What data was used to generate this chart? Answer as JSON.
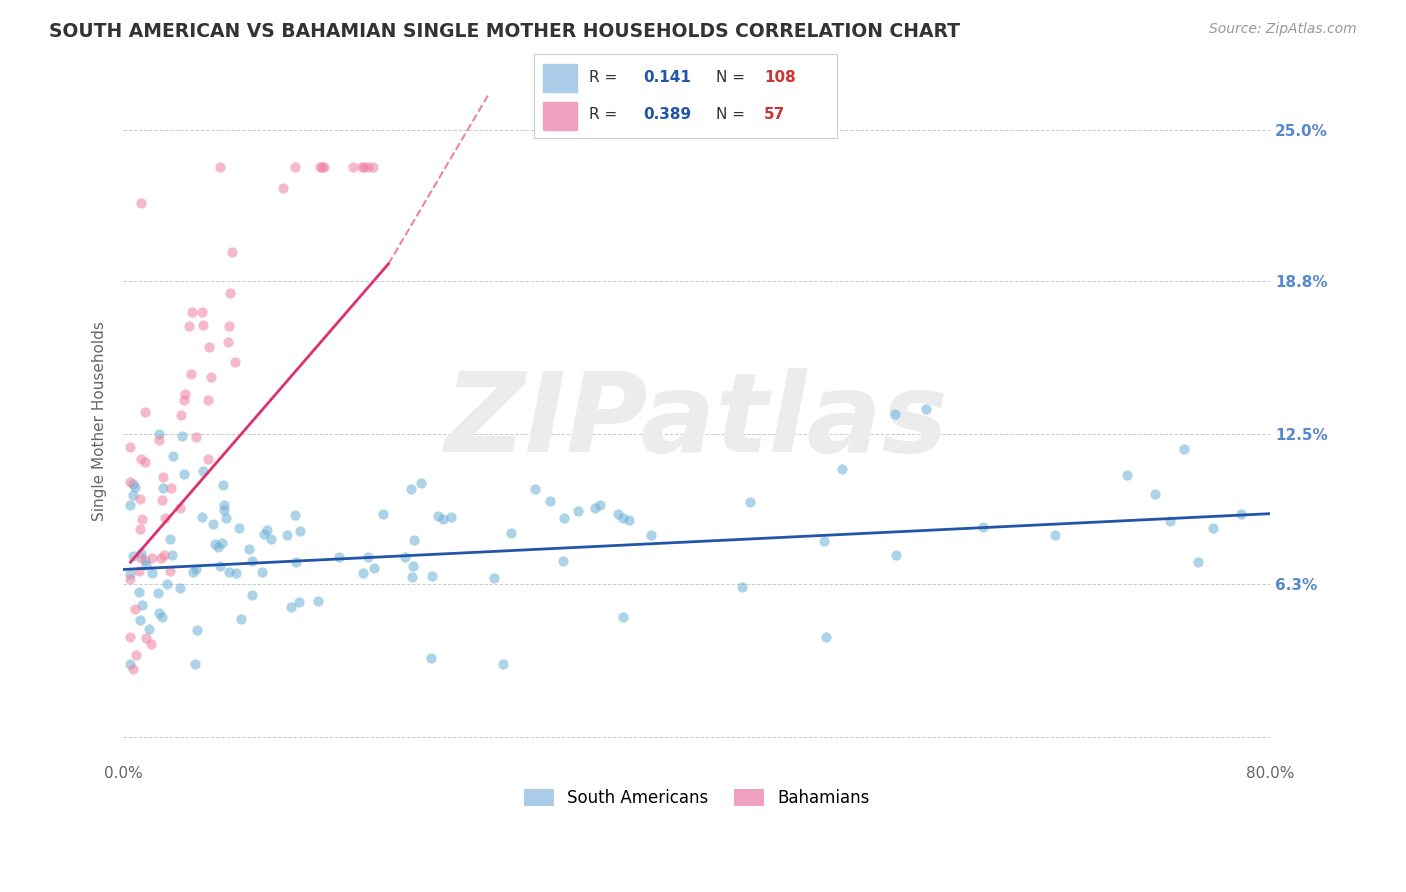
{
  "title": "SOUTH AMERICAN VS BAHAMIAN SINGLE MOTHER HOUSEHOLDS CORRELATION CHART",
  "source": "Source: ZipAtlas.com",
  "ylabel": "Single Mother Households",
  "xlim": [
    0.0,
    0.8
  ],
  "ylim": [
    -0.01,
    0.27
  ],
  "ytick_positions": [
    0.0,
    0.063,
    0.125,
    0.188,
    0.25
  ],
  "ytick_labels": [
    "",
    "6.3%",
    "12.5%",
    "18.8%",
    "25.0%"
  ],
  "xtick_positions": [
    0.0,
    0.8
  ],
  "xtick_labels": [
    "0.0%",
    "80.0%"
  ],
  "watermark": "ZIPatlas",
  "sa_color": "#6aafd6",
  "bah_color": "#f080a0",
  "sa_line_color": "#2255aa",
  "bah_line_color": "#e03070",
  "background_color": "#ffffff",
  "grid_color": "#cccccc",
  "title_color": "#333333",
  "watermark_color": "#ececec",
  "right_axis_color": "#5588cc",
  "legend_box_color": "#cccccc",
  "r_value_color": "#2255aa",
  "n_value_color": "#cc3333",
  "legend_patch_sa": "#aacce8",
  "legend_patch_bah": "#f0a0c0"
}
